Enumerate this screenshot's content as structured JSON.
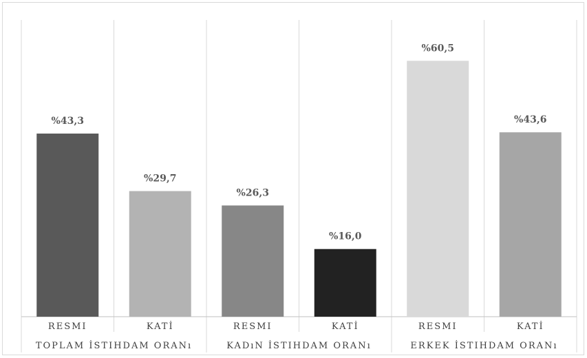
{
  "chart_data": {
    "type": "bar",
    "groups": [
      {
        "label": "TOPLAM İSTIHDAM ORANı",
        "categories": [
          "RESMI",
          "KATİ"
        ],
        "values": [
          43.3,
          29.7
        ],
        "value_labels": [
          "%43,3",
          "%29,7"
        ],
        "colors": [
          "#595959",
          "#b3b3b3"
        ]
      },
      {
        "label": "KADıN İSTIHDAM ORANı",
        "categories": [
          "RESMI",
          "KATİ"
        ],
        "values": [
          26.3,
          16.0
        ],
        "value_labels": [
          "%26,3",
          "%16,0"
        ],
        "colors": [
          "#878787",
          "#222222"
        ]
      },
      {
        "label": "ERKEK İSTIHDAM ORANı",
        "categories": [
          "RESMI",
          "KATİ"
        ],
        "values": [
          60.5,
          43.6
        ],
        "value_labels": [
          "%60,5",
          "%43,6"
        ],
        "colors": [
          "#d9d9d9",
          "#a6a6a6"
        ]
      }
    ],
    "ylim": [
      0,
      70
    ],
    "grid": false,
    "legend": "none"
  }
}
